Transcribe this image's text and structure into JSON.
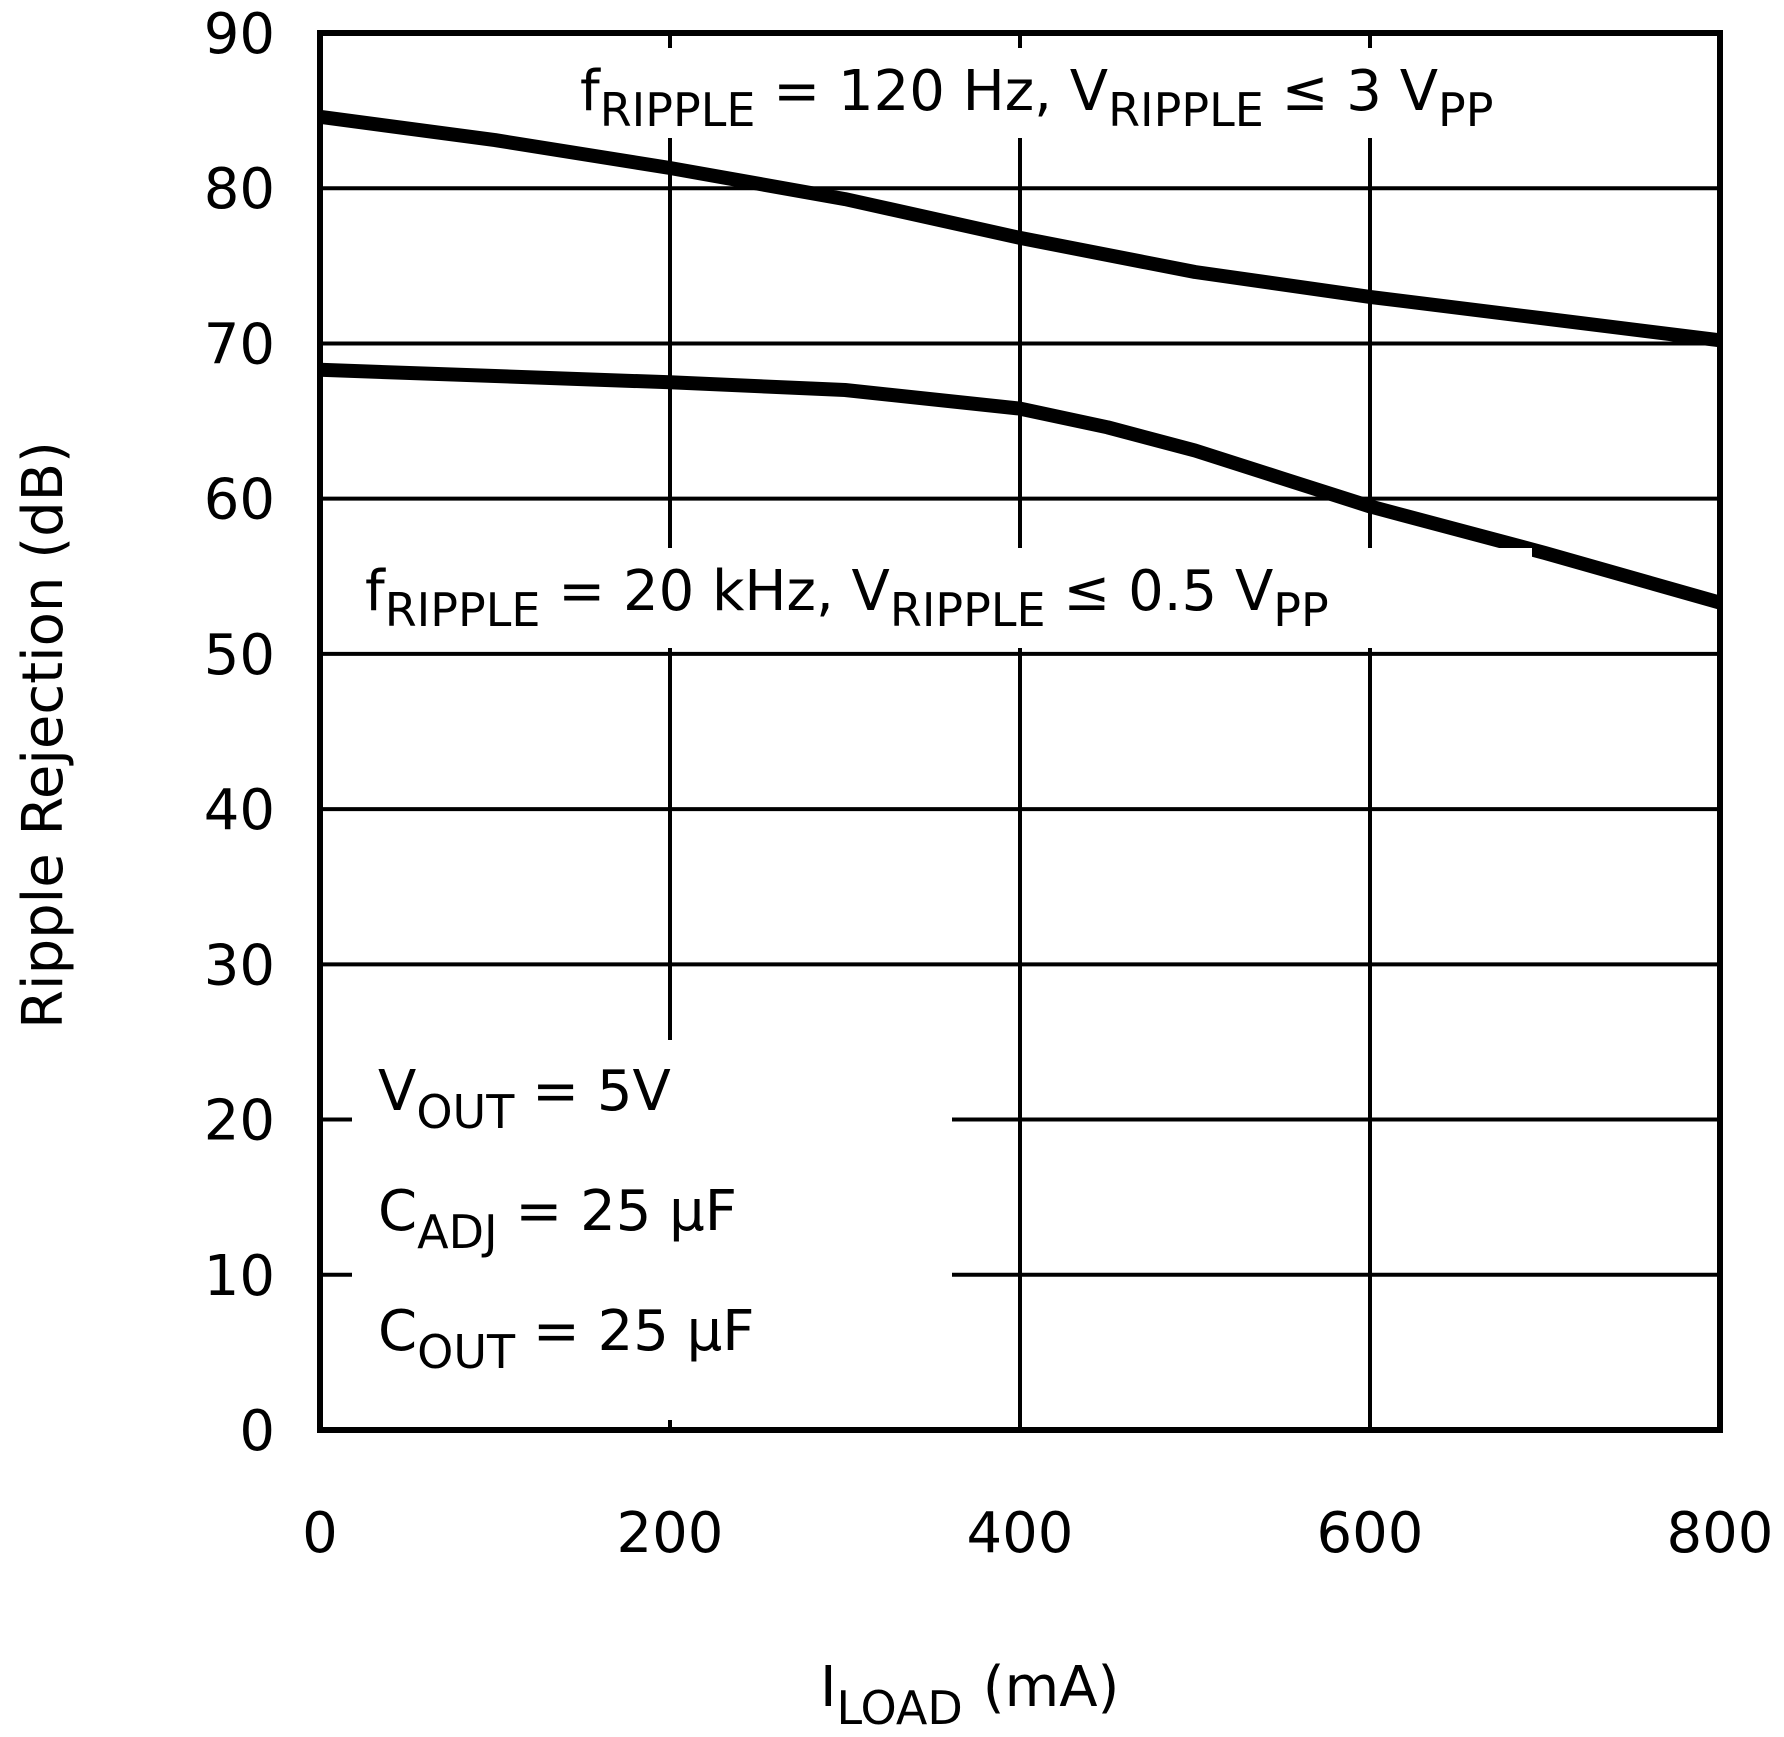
{
  "chart_data": {
    "type": "line",
    "title": "",
    "xlabel": {
      "main": "I",
      "sub": "LOAD",
      "unit": "(mA)"
    },
    "ylabel": "Ripple Rejection (dB)",
    "xlim": [
      0,
      800
    ],
    "ylim": [
      0,
      90
    ],
    "x_ticks": [
      0,
      200,
      400,
      600,
      800
    ],
    "y_ticks": [
      0,
      10,
      20,
      30,
      40,
      50,
      60,
      70,
      80,
      90
    ],
    "grid": true,
    "series": [
      {
        "name": "fRIPPLE = 120 Hz, VRIPPLE ≤ 3 VPP",
        "x": [
          0,
          100,
          200,
          300,
          400,
          500,
          600,
          700,
          800
        ],
        "y": [
          84.6,
          83.1,
          81.3,
          79.3,
          76.8,
          74.6,
          73.0,
          71.6,
          70.2
        ]
      },
      {
        "name": "fRIPPLE = 20 kHz, VRIPPLE ≤ 0.5 VPP",
        "x": [
          0,
          100,
          200,
          300,
          400,
          450,
          500,
          550,
          600,
          700,
          800
        ],
        "y": [
          68.3,
          67.9,
          67.5,
          67.0,
          65.8,
          64.6,
          63.1,
          61.3,
          59.5,
          56.5,
          53.3
        ]
      }
    ],
    "annotations": {
      "curve_120": {
        "f": "f",
        "f_sub": "RIPPLE",
        "eq": " = 120 Hz, ",
        "v": "V",
        "v_sub": "RIPPLE",
        "rel": " ≤ 3 V",
        "rel_sub": "PP"
      },
      "curve_20k": {
        "f": "f",
        "f_sub": "RIPPLE",
        "eq": " = 20 kHz, ",
        "v": "V",
        "v_sub": "RIPPLE",
        "rel": " ≤ 0.5 V",
        "rel_sub": "PP"
      },
      "conditions": [
        {
          "sym": "V",
          "sub": "OUT",
          "val": " = 5V"
        },
        {
          "sym": "C",
          "sub": "ADJ",
          "val": " = 25 μF"
        },
        {
          "sym": "C",
          "sub": "OUT",
          "val": " = 25 μF"
        }
      ]
    }
  }
}
